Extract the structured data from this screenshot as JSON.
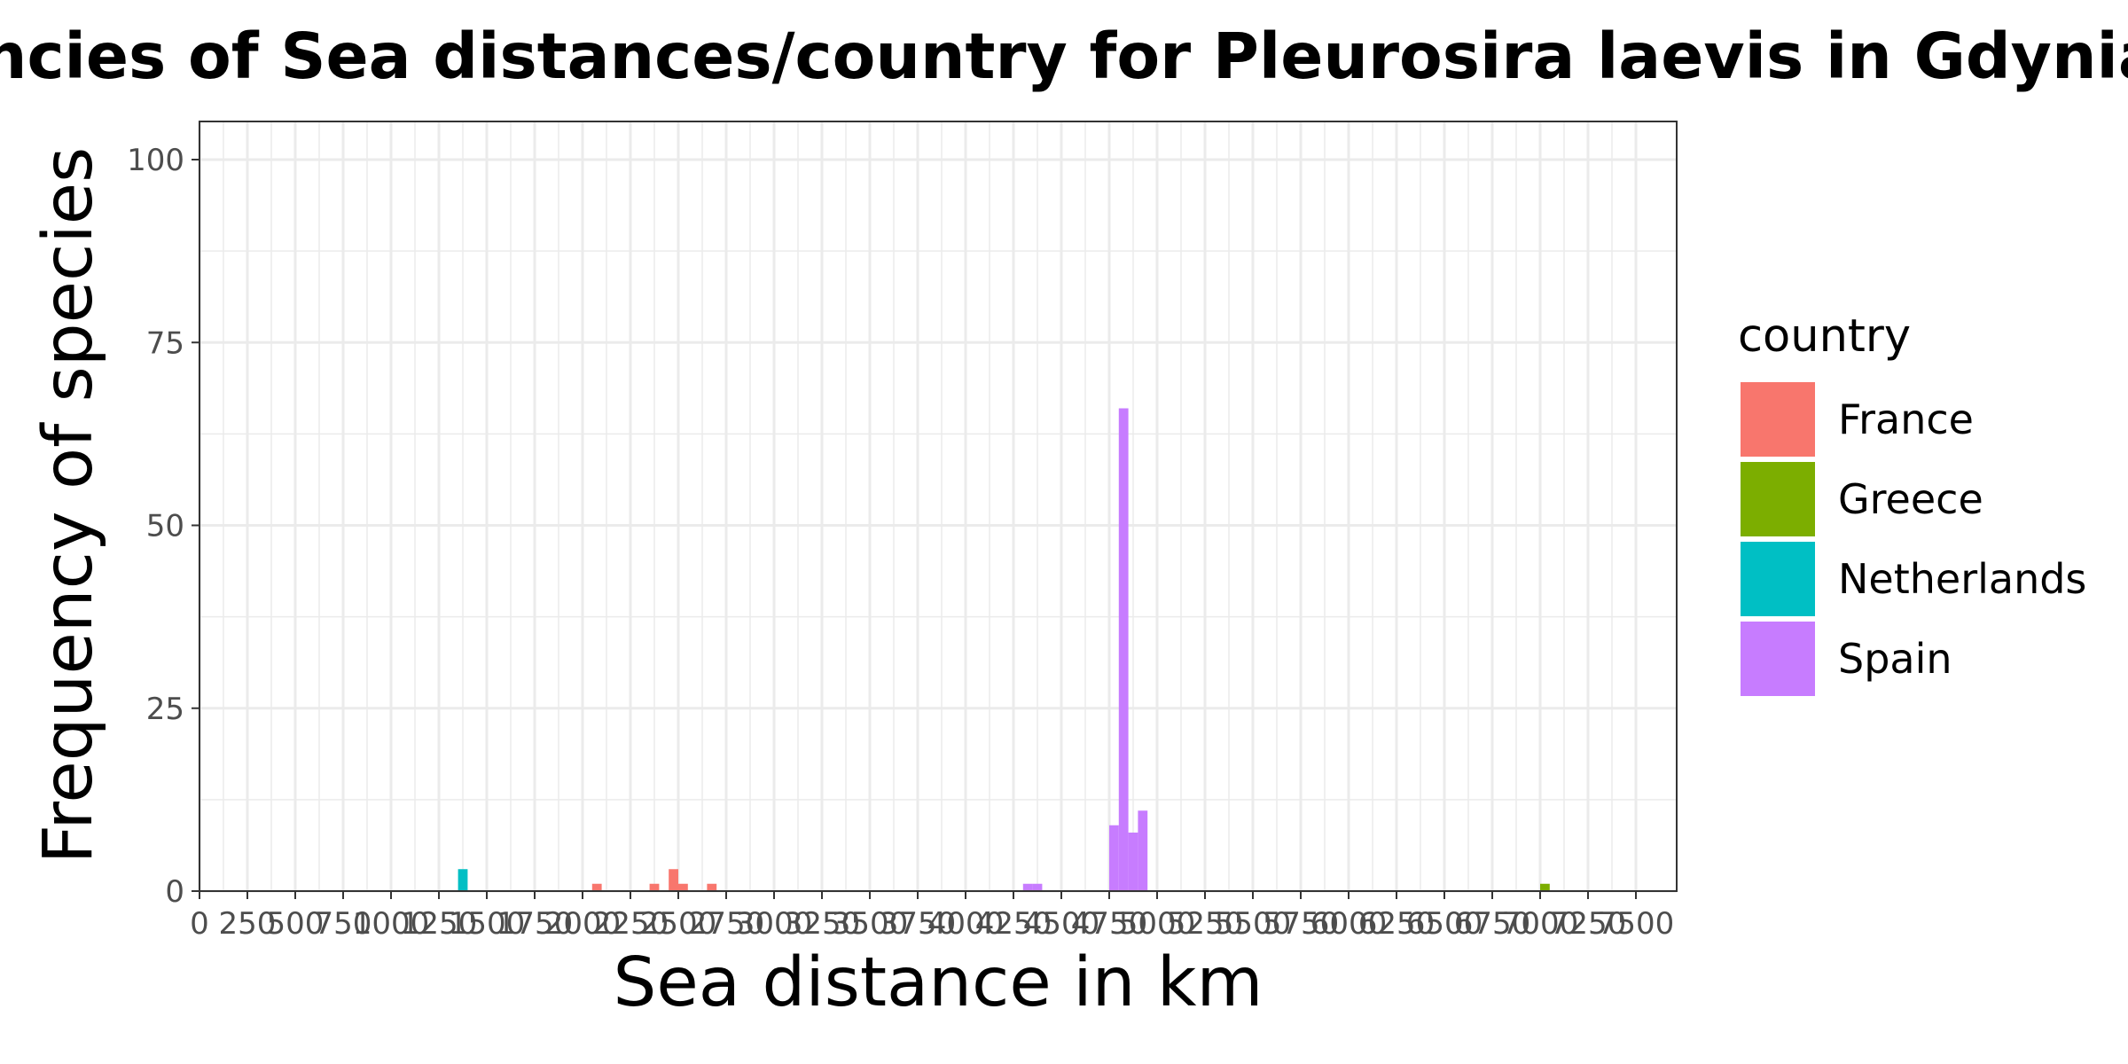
{
  "chart_data": {
    "type": "bar",
    "title": "Frequencies of Sea distances/country for Pleurosira laevis in Gdynia",
    "xlabel": "Sea distance in km",
    "ylabel": "Frequency of species",
    "xlim": [
      0,
      7700
    ],
    "ylim": [
      0,
      105
    ],
    "x_ticks": [
      0,
      250,
      500,
      750,
      1000,
      1250,
      1500,
      1750,
      2000,
      2250,
      2500,
      2750,
      3000,
      3250,
      3500,
      3750,
      4000,
      4250,
      4500,
      4750,
      5000,
      5250,
      5500,
      5750,
      6000,
      6250,
      6500,
      6750,
      7000,
      7250,
      7500
    ],
    "y_ticks": [
      0,
      25,
      50,
      75,
      100
    ],
    "bin_width": 50,
    "grid": true,
    "legend": {
      "title": "country",
      "position": "right"
    },
    "series": [
      {
        "name": "France",
        "color": "#F8766D",
        "bars": [
          {
            "x": 2075,
            "y": 1
          },
          {
            "x": 2375,
            "y": 1
          },
          {
            "x": 2475,
            "y": 3
          },
          {
            "x": 2525,
            "y": 1
          },
          {
            "x": 2675,
            "y": 1
          }
        ]
      },
      {
        "name": "Greece",
        "color": "#7CAE00",
        "bars": [
          {
            "x": 7025,
            "y": 1
          }
        ]
      },
      {
        "name": "Netherlands",
        "color": "#00BFC4",
        "bars": [
          {
            "x": 1375,
            "y": 3
          }
        ]
      },
      {
        "name": "Spain",
        "color": "#C77CFF",
        "bars": [
          {
            "x": 4325,
            "y": 1
          },
          {
            "x": 4375,
            "y": 1
          },
          {
            "x": 4775,
            "y": 9
          },
          {
            "x": 4825,
            "y": 66
          },
          {
            "x": 4875,
            "y": 8
          },
          {
            "x": 4925,
            "y": 11
          }
        ]
      }
    ]
  }
}
